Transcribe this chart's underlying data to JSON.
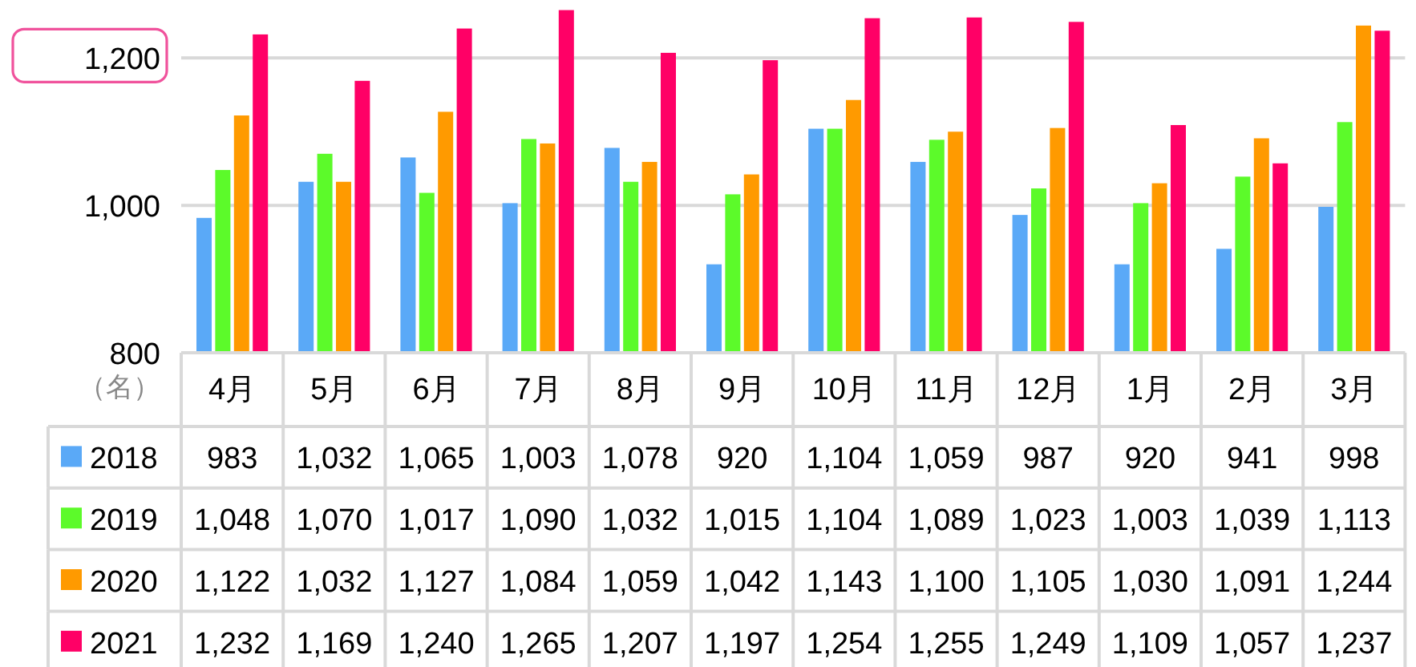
{
  "chart_data": {
    "type": "bar",
    "ylabel": "（名）",
    "categories": [
      "4月",
      "5月",
      "6月",
      "7月",
      "8月",
      "9月",
      "10月",
      "11月",
      "12月",
      "1月",
      "2月",
      "3月"
    ],
    "series": [
      {
        "name": "2018",
        "color": "#5aa9f7",
        "values": [
          983,
          1032,
          1065,
          1003,
          1078,
          920,
          1104,
          1059,
          987,
          920,
          941,
          998
        ],
        "value_labels": [
          "983",
          "1,032",
          "1,065",
          "1,003",
          "1,078",
          "920",
          "1,104",
          "1,059",
          "987",
          "920",
          "941",
          "998"
        ]
      },
      {
        "name": "2019",
        "color": "#5cfa2a",
        "values": [
          1048,
          1070,
          1017,
          1090,
          1032,
          1015,
          1104,
          1089,
          1023,
          1003,
          1039,
          1113
        ],
        "value_labels": [
          "1,048",
          "1,070",
          "1,017",
          "1,090",
          "1,032",
          "1,015",
          "1,104",
          "1,089",
          "1,023",
          "1,003",
          "1,039",
          "1,113"
        ]
      },
      {
        "name": "2020",
        "color": "#ff9a00",
        "values": [
          1122,
          1032,
          1127,
          1084,
          1059,
          1042,
          1143,
          1100,
          1105,
          1030,
          1091,
          1244
        ],
        "value_labels": [
          "1,122",
          "1,032",
          "1,127",
          "1,084",
          "1,059",
          "1,042",
          "1,143",
          "1,100",
          "1,105",
          "1,030",
          "1,091",
          "1,244"
        ]
      },
      {
        "name": "2021",
        "color": "#ff0066",
        "values": [
          1232,
          1169,
          1240,
          1265,
          1207,
          1197,
          1254,
          1255,
          1249,
          1109,
          1057,
          1237
        ],
        "value_labels": [
          "1,232",
          "1,169",
          "1,240",
          "1,265",
          "1,207",
          "1,197",
          "1,254",
          "1,255",
          "1,249",
          "1,109",
          "1,057",
          "1,237"
        ]
      }
    ],
    "ylim": [
      800,
      1270
    ],
    "yticks": [
      800,
      {
        "value": 1000,
        "label": "1,000"
      },
      {
        "value": 1200,
        "label": "1,200"
      }
    ],
    "grid": "y",
    "legend": "bottom left"
  }
}
